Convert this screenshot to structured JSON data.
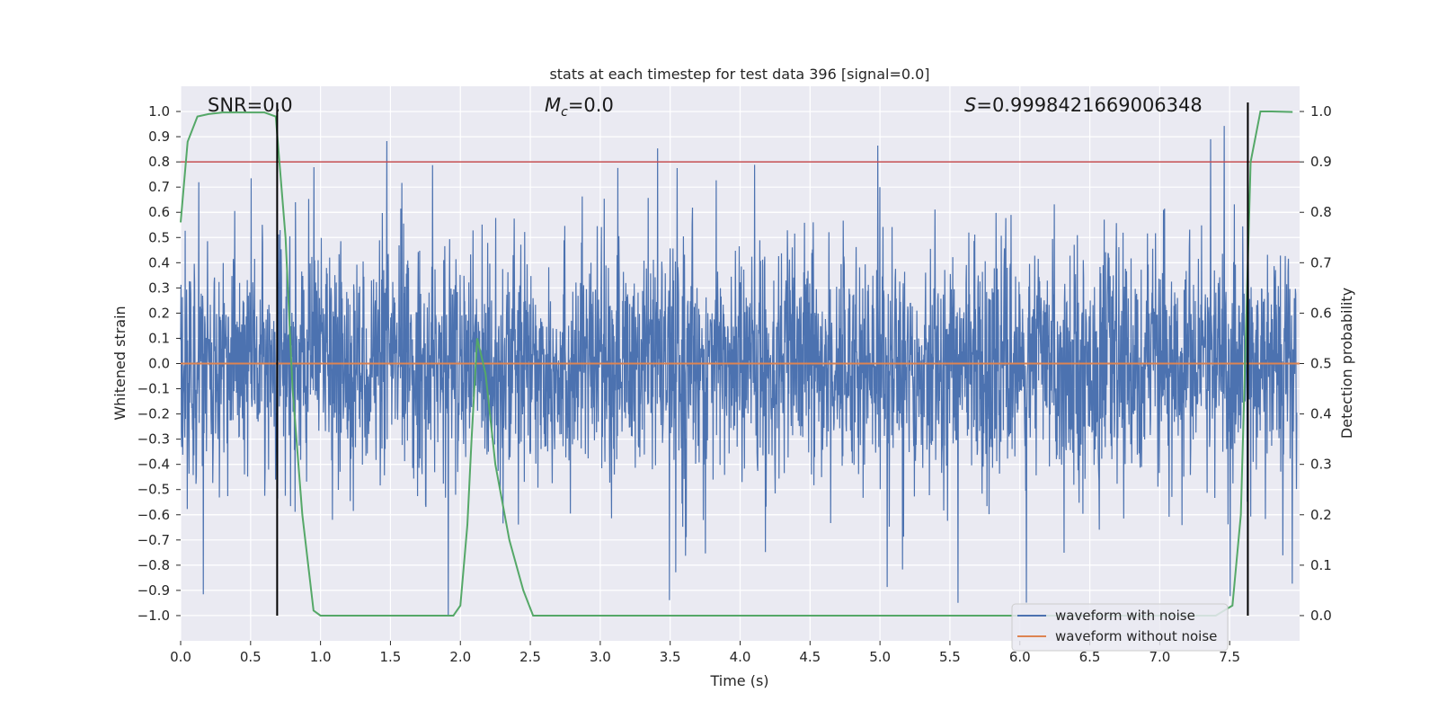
{
  "chart_data": {
    "type": "line",
    "title": "stats at each timestep for test data 396 [signal=0.0]",
    "xlabel": "Time (s)",
    "ylabel_left": "Whitened strain",
    "ylabel_right": "Detection probability",
    "xlim": [
      0.0,
      8.0
    ],
    "ylim_left": [
      -1.1,
      1.1
    ],
    "ylim_right": [
      -0.05,
      1.05
    ],
    "x_ticks": [
      "0.0",
      "0.5",
      "1.0",
      "1.5",
      "2.0",
      "2.5",
      "3.0",
      "3.5",
      "4.0",
      "4.5",
      "5.0",
      "5.5",
      "6.0",
      "6.5",
      "7.0",
      "7.5"
    ],
    "y_left_ticks": [
      "1.0",
      "0.9",
      "0.8",
      "0.7",
      "0.6",
      "0.5",
      "0.4",
      "0.3",
      "0.2",
      "0.1",
      "0.0",
      "−0.1",
      "−0.2",
      "−0.3",
      "−0.4",
      "−0.5",
      "−0.6",
      "−0.7",
      "−0.8",
      "−0.9",
      "−1.0"
    ],
    "y_right_ticks": [
      "1.0",
      "0.9",
      "0.8",
      "0.7",
      "0.6",
      "0.5",
      "0.4",
      "0.3",
      "0.2",
      "0.1",
      "0.0"
    ],
    "grid": true,
    "annotations": {
      "snr": "SNR=0.0",
      "mc_symbol": "M",
      "mc_sub": "c",
      "mc_value": "=0.0",
      "s_symbol": "S",
      "s_value": "=0.9998421669006348"
    },
    "threshold_line": {
      "axis": "right",
      "value": 0.9,
      "color": "#c44e52"
    },
    "detection_markers": {
      "x": [
        0.69,
        7.63
      ],
      "y_range": [
        -1.0,
        1.0
      ],
      "color": "#000000"
    },
    "series": [
      {
        "name": "waveform with noise",
        "axis": "left",
        "color": "#4c72b0",
        "description_values": {
          "core_band": [
            -0.2,
            0.2
          ],
          "typical_envelope": [
            -0.5,
            0.55
          ],
          "max": 0.97,
          "min": -1.0
        }
      },
      {
        "name": "waveform without noise",
        "axis": "left",
        "color": "#dd8452",
        "x": [
          0.0,
          8.0
        ],
        "values": [
          0.0,
          0.0
        ]
      },
      {
        "name": "detection probability",
        "axis": "right",
        "color": "#55a868",
        "x": [
          0.0,
          0.05,
          0.12,
          0.2,
          0.3,
          0.45,
          0.6,
          0.68,
          0.75,
          0.8,
          0.87,
          0.95,
          1.0,
          1.2,
          1.5,
          1.8,
          1.95,
          2.0,
          2.05,
          2.08,
          2.12,
          2.18,
          2.25,
          2.35,
          2.45,
          2.52,
          3.0,
          4.0,
          5.0,
          6.0,
          7.0,
          7.4,
          7.52,
          7.58,
          7.65,
          7.72,
          7.8,
          7.95
        ],
        "values": [
          0.78,
          0.94,
          0.99,
          0.995,
          0.998,
          0.998,
          0.998,
          0.99,
          0.75,
          0.45,
          0.2,
          0.01,
          0.0,
          0.0,
          0.0,
          0.0,
          0.0,
          0.02,
          0.18,
          0.35,
          0.55,
          0.48,
          0.3,
          0.15,
          0.05,
          0.0,
          0.0,
          0.0,
          0.0,
          0.0,
          0.0,
          0.0,
          0.02,
          0.2,
          0.9,
          1.0,
          1.0,
          0.999
        ]
      }
    ],
    "legend": {
      "location": "lower right",
      "entries": [
        "waveform with noise",
        "waveform without noise"
      ]
    }
  }
}
